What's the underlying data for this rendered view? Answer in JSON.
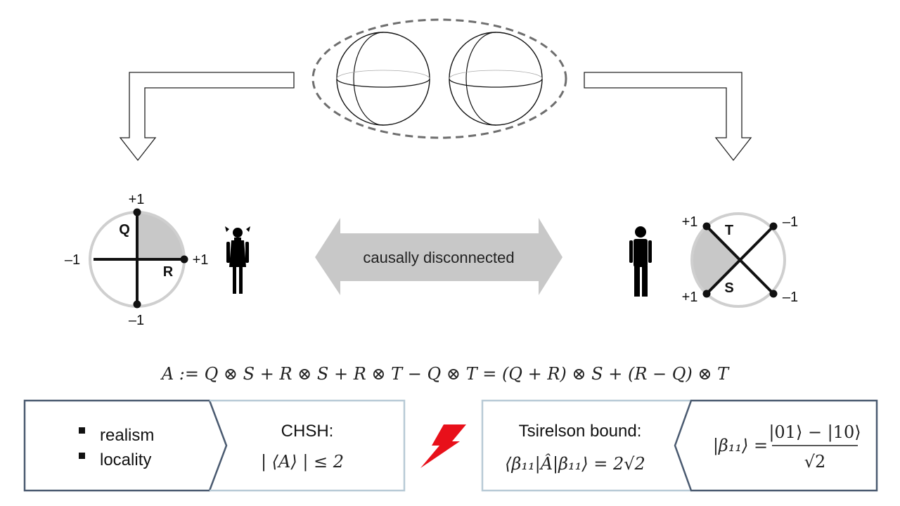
{
  "diagram": {
    "left_dial": {
      "top_label": "+1",
      "bottom_label": "–1",
      "left_label": "–1",
      "right_label": "+1",
      "axis_q": "Q",
      "axis_r": "R"
    },
    "right_dial": {
      "top_left_label": "+1",
      "bottom_left_label": "+1",
      "top_right_label": "–1",
      "bottom_right_label": "–1",
      "axis_t": "T",
      "axis_s": "S"
    },
    "middle_arrow_text": "causally disconnected",
    "equation": "A := Q ⊗ S + R ⊗ S + R ⊗ T − Q ⊗ T = (Q + R) ⊗ S + (R − Q) ⊗ T"
  },
  "left_box": {
    "bullets": [
      "realism",
      "locality"
    ],
    "title": "CHSH:",
    "formula": "| ⟨A⟩ | ≤ 2"
  },
  "right_box": {
    "title": "Tsirelson bound:",
    "formula": "⟨β₁₁|Â|β₁₁⟩ = 2√2",
    "state_lhs": "|β₁₁⟩ =",
    "state_numerator": "|01⟩ − |10⟩",
    "state_denominator": "√2"
  },
  "colors": {
    "box_border": "#4a5a70",
    "box_divider": "#b8cad6",
    "lightning": "#e8101a",
    "shade": "#c8c8c8",
    "arrow_fill": "#c8c8c8"
  }
}
